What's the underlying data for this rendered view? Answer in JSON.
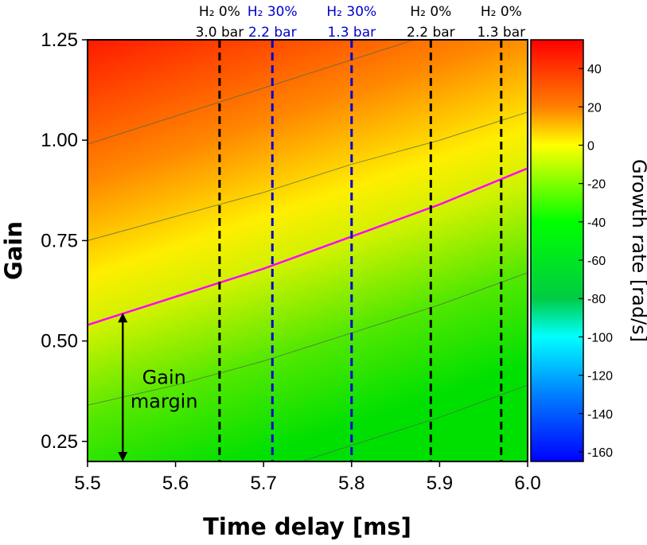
{
  "chart_data": {
    "type": "heatmap",
    "title": "",
    "xlabel": "Time delay [ms]",
    "ylabel": "Gain",
    "colorbar_label": "Growth rate [rad/s]",
    "xlim": [
      5.5,
      6.0
    ],
    "ylim": [
      0.2,
      1.25
    ],
    "x_ticks": [
      "5.5",
      "5.6",
      "5.7",
      "5.8",
      "5.9",
      "6.0"
    ],
    "y_ticks": [
      "0.25",
      "0.50",
      "0.75",
      "1.00",
      "1.25"
    ],
    "colorbar_range": [
      -165,
      55
    ],
    "colorbar_ticks": [
      "40",
      "20",
      "0",
      "-20",
      "-40",
      "-60",
      "-80",
      "-100",
      "-120",
      "-140",
      "-160"
    ],
    "colormap_stops": [
      {
        "value": 55,
        "color": "#ff0000"
      },
      {
        "value": 20,
        "color": "#ff7f00"
      },
      {
        "value": 0,
        "color": "#ffff00"
      },
      {
        "value": -40,
        "color": "#00ff00"
      },
      {
        "value": -80,
        "color": "#00cc44"
      },
      {
        "value": -100,
        "color": "#00ffff"
      },
      {
        "value": -130,
        "color": "#0080ff"
      },
      {
        "value": -165,
        "color": "#0000ff"
      }
    ],
    "zero_growth_contour": {
      "color": "#ff00ff",
      "x": [
        5.5,
        5.6,
        5.7,
        5.8,
        5.9,
        6.0
      ],
      "y": [
        0.54,
        0.61,
        0.68,
        0.76,
        0.84,
        0.93
      ]
    },
    "contour_lines": [
      {
        "x": [
          5.5,
          5.6,
          5.7,
          5.8,
          5.9,
          6.0
        ],
        "y": [
          0.99,
          1.06,
          1.13,
          1.2,
          1.27,
          1.34
        ]
      },
      {
        "x": [
          5.5,
          5.6,
          5.7,
          5.8,
          5.9,
          6.0
        ],
        "y": [
          0.75,
          0.81,
          0.87,
          0.94,
          1.0,
          1.07
        ]
      },
      {
        "x": [
          5.5,
          5.6,
          5.7,
          5.8,
          5.9,
          6.0
        ],
        "y": [
          0.34,
          0.39,
          0.45,
          0.52,
          0.59,
          0.67
        ]
      },
      {
        "x": [
          5.5,
          5.6,
          5.7,
          5.8,
          5.9,
          6.0
        ],
        "y": [
          0.06,
          0.11,
          0.17,
          0.24,
          0.31,
          0.39
        ]
      }
    ],
    "vertical_lines": [
      {
        "x": 5.65,
        "color": "#000000",
        "label_top": "H₂ 0%",
        "label_bottom": "3.0 bar"
      },
      {
        "x": 5.71,
        "color": "#0000cc",
        "label_top": "H₂ 30%",
        "label_bottom": "2.2 bar"
      },
      {
        "x": 5.8,
        "color": "#0000cc",
        "label_top": "H₂ 30%",
        "label_bottom": "1.3 bar"
      },
      {
        "x": 5.89,
        "color": "#000000",
        "label_top": "H₂ 0%",
        "label_bottom": "2.2 bar"
      },
      {
        "x": 5.97,
        "color": "#000000",
        "label_top": "H₂ 0%",
        "label_bottom": "1.3 bar"
      }
    ],
    "gain_margin": {
      "x": 5.54,
      "y_from": 0.2,
      "y_to": 0.57,
      "label_line1": "Gain",
      "label_line2": "margin"
    }
  }
}
